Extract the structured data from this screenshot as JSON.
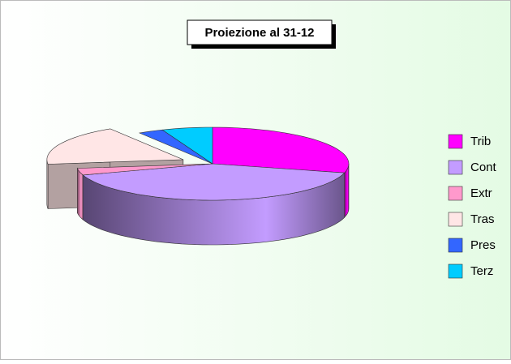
{
  "chart_data": {
    "type": "pie3d",
    "title": "Proiezione al 31-12",
    "series": [
      {
        "name": "Trib",
        "color": "#ff00ff",
        "values": [
          29
        ]
      },
      {
        "name": "Cont",
        "color": "#c39cff",
        "values": [
          41
        ]
      },
      {
        "name": "Extr",
        "color": "#ff99cc",
        "values": [
          3
        ]
      },
      {
        "name": "Tras",
        "color": "#ffe6e6",
        "values": [
          18
        ]
      },
      {
        "name": "Pres",
        "color": "#3366ff",
        "values": [
          3
        ]
      },
      {
        "name": "Terz",
        "color": "#00ccff",
        "values": [
          6
        ]
      }
    ],
    "exploded": "Tras"
  }
}
